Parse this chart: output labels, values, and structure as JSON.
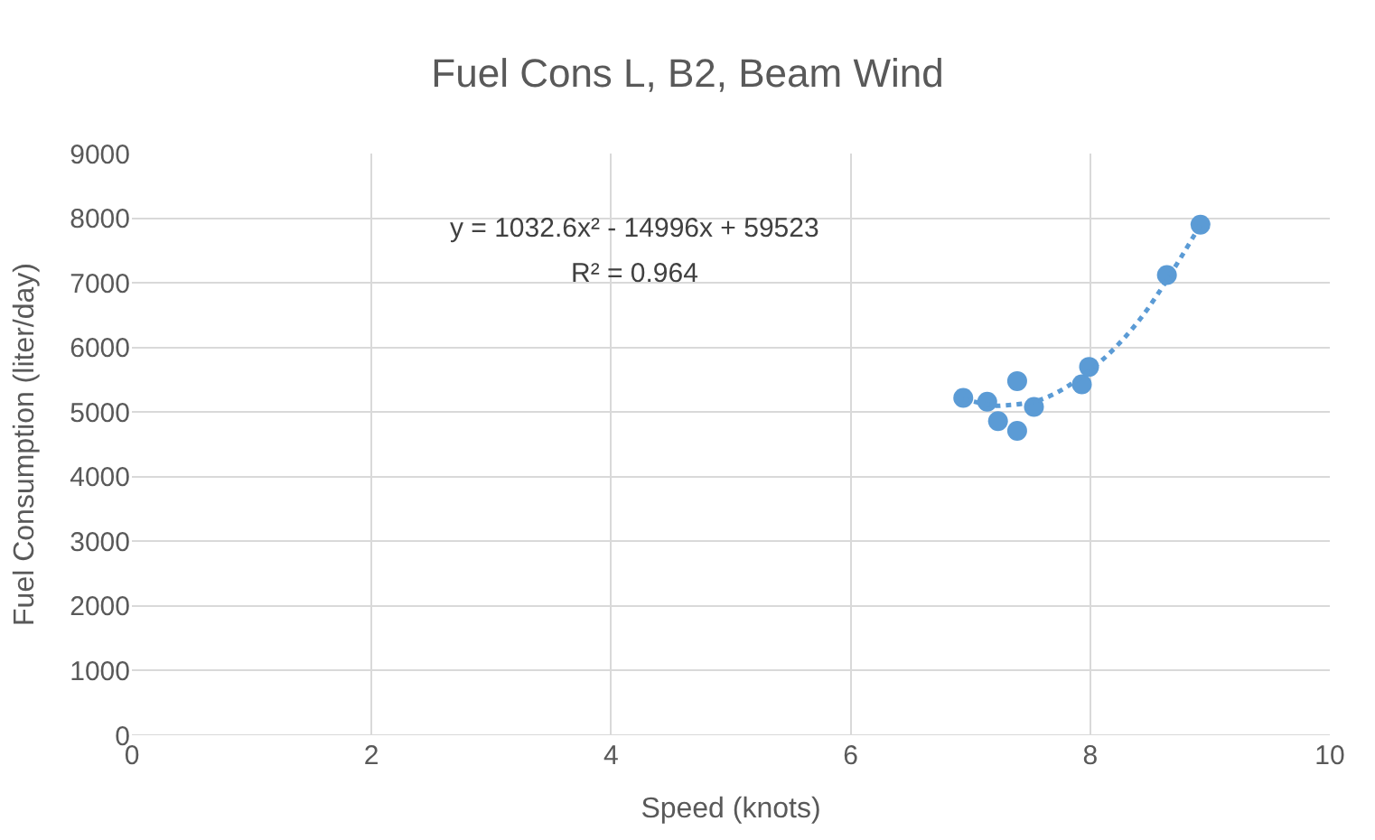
{
  "chart_data": {
    "type": "scatter",
    "title": "Fuel Cons L, B2, Beam Wind",
    "xlabel": "Speed (knots)",
    "ylabel": "Fuel Consumption (liter/day)",
    "xlim": [
      0,
      10
    ],
    "xticks": [
      0,
      2,
      4,
      6,
      8,
      10
    ],
    "ylim": [
      0,
      9000
    ],
    "yticks": [
      0,
      1000,
      2000,
      3000,
      4000,
      5000,
      6000,
      7000,
      8000,
      9000
    ],
    "grid": true,
    "marker": "circle",
    "series": [
      {
        "color": "#5b9bd5",
        "x": [
          6.94,
          7.14,
          7.23,
          7.39,
          7.39,
          7.53,
          7.93,
          7.99,
          8.64,
          8.92
        ],
        "values": [
          5220,
          5160,
          4860,
          5480,
          4710,
          5080,
          5430,
          5700,
          7120,
          7900
        ]
      },
      {
        "type": "line",
        "color": "#5b9bd5",
        "line_style": "dotted",
        "marker": "none",
        "x": [
          6.94,
          7.2,
          7.26,
          7.6,
          8.0,
          8.4,
          8.92
        ],
        "values": [
          5200,
          5100,
          5100,
          5200,
          5650,
          6400,
          7900
        ]
      }
    ],
    "annotations": [
      "y = 1032.6x² - 14996x + 59523",
      "R² = 0.964"
    ]
  }
}
